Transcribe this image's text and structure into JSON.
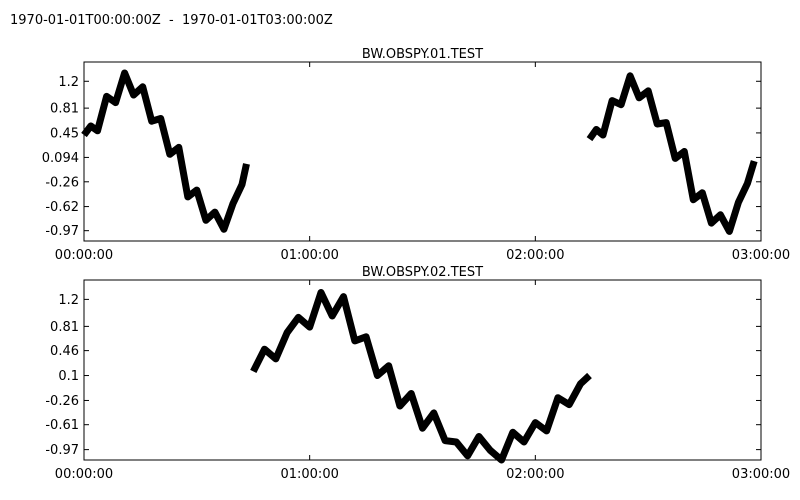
{
  "figure": {
    "title": "1970-01-01T00:00:00Z  -  1970-01-01T03:00:00Z"
  },
  "chart_data": [
    {
      "type": "line",
      "title": "BW.OBSPY.01.TEST",
      "xlabel": "",
      "ylabel": "",
      "x_unit": "hours",
      "xlim": [
        0,
        3
      ],
      "ylim": [
        -1.12,
        1.48
      ],
      "xticks": [
        0,
        1,
        2,
        3
      ],
      "xtick_labels": [
        "00:00:00",
        "01:00:00",
        "02:00:00",
        "03:00:00"
      ],
      "yticks": [
        1.2,
        0.81,
        0.45,
        0.094,
        -0.26,
        -0.62,
        -0.97
      ],
      "ytick_labels": [
        "1.2",
        "0.81",
        "0.45",
        "0.094",
        "-0.26",
        "-0.62",
        "-0.97"
      ],
      "grid": false,
      "legend": "none",
      "line_color": "#000000",
      "series": [
        {
          "x": [
            0.0,
            0.03,
            0.06,
            0.1,
            0.14,
            0.18,
            0.22,
            0.26,
            0.3,
            0.34,
            0.38,
            0.42,
            0.46,
            0.5,
            0.54,
            0.58,
            0.62,
            0.66,
            0.7,
            0.72
          ],
          "y": [
            0.42,
            0.55,
            0.48,
            0.98,
            0.89,
            1.32,
            1.0,
            1.12,
            0.62,
            0.66,
            0.14,
            0.24,
            -0.48,
            -0.38,
            -0.82,
            -0.7,
            -0.95,
            -0.58,
            -0.3,
            0.0
          ]
        },
        {
          "x": [
            2.24,
            2.27,
            2.3,
            2.34,
            2.38,
            2.42,
            2.46,
            2.5,
            2.54,
            2.58,
            2.62,
            2.66,
            2.7,
            2.74,
            2.78,
            2.82,
            2.86,
            2.9,
            2.94,
            2.97
          ],
          "y": [
            0.36,
            0.5,
            0.42,
            0.92,
            0.86,
            1.28,
            0.96,
            1.06,
            0.58,
            0.6,
            0.08,
            0.18,
            -0.52,
            -0.42,
            -0.86,
            -0.74,
            -0.98,
            -0.56,
            -0.28,
            0.04
          ]
        }
      ]
    },
    {
      "type": "line",
      "title": "BW.OBSPY.02.TEST",
      "xlabel": "",
      "ylabel": "",
      "x_unit": "hours",
      "xlim": [
        0,
        3
      ],
      "ylim": [
        -1.12,
        1.48
      ],
      "xticks": [
        0,
        1,
        2,
        3
      ],
      "xtick_labels": [
        "00:00:00",
        "01:00:00",
        "02:00:00",
        "03:00:00"
      ],
      "yticks": [
        1.2,
        0.81,
        0.46,
        0.1,
        -0.26,
        -0.61,
        -0.97
      ],
      "ytick_labels": [
        "1.2",
        "0.81",
        "0.46",
        "0.1",
        "-0.26",
        "-0.61",
        "-0.97"
      ],
      "grid": false,
      "legend": "none",
      "line_color": "#000000",
      "series": [
        {
          "x": [
            0.75,
            0.8,
            0.85,
            0.9,
            0.95,
            1.0,
            1.05,
            1.1,
            1.15,
            1.2,
            1.25,
            1.3,
            1.35,
            1.4,
            1.45,
            1.5,
            1.55,
            1.6,
            1.65,
            1.7,
            1.75,
            1.8,
            1.85,
            1.9,
            1.95,
            2.0,
            2.05,
            2.1,
            2.15,
            2.2,
            2.24
          ],
          "y": [
            0.16,
            0.48,
            0.34,
            0.72,
            0.94,
            0.8,
            1.3,
            0.96,
            1.24,
            0.6,
            0.66,
            0.1,
            0.24,
            -0.34,
            -0.16,
            -0.66,
            -0.44,
            -0.84,
            -0.86,
            -1.06,
            -0.78,
            -0.98,
            -1.12,
            -0.72,
            -0.86,
            -0.58,
            -0.7,
            -0.22,
            -0.32,
            -0.02,
            0.1
          ]
        }
      ]
    }
  ]
}
